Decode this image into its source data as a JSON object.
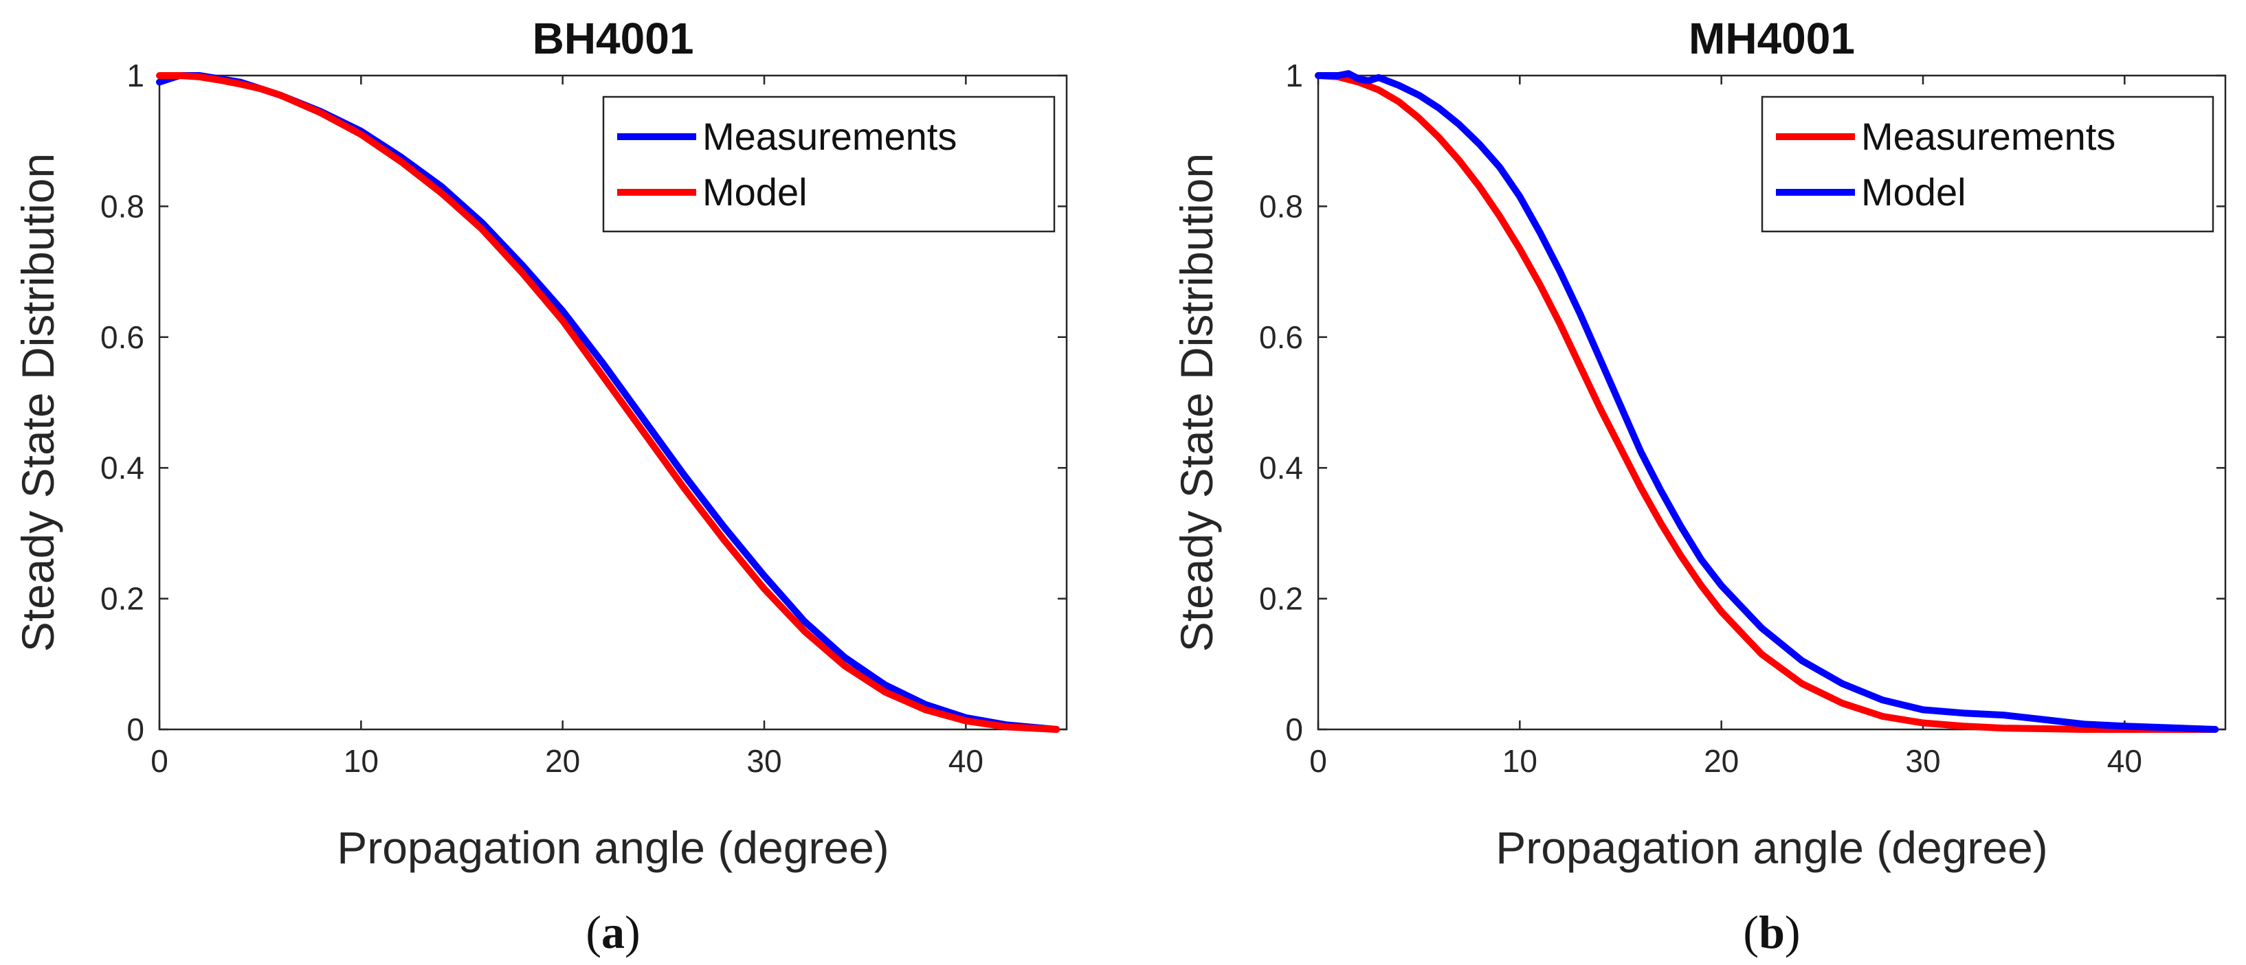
{
  "colors": {
    "blue": "#0000ff",
    "red": "#ff0000"
  },
  "chart_data": [
    {
      "type": "line",
      "title": "BH4001",
      "xlabel": "Propagation angle (degree)",
      "ylabel": "Steady State Distribution",
      "xlim": [
        0,
        45
      ],
      "ylim": [
        0,
        1
      ],
      "xticks": [
        "0",
        "10",
        "20",
        "30",
        "40"
      ],
      "yticks": [
        "0",
        "0.2",
        "0.4",
        "0.6",
        "0.8",
        "1"
      ],
      "legend_position": "top-right",
      "caption_letter": "a",
      "series": [
        {
          "name": "Measurements",
          "color": "#0000ff",
          "x": [
            0,
            1,
            2,
            3,
            4,
            5,
            6,
            8,
            10,
            12,
            14,
            16,
            18,
            20,
            22,
            24,
            26,
            28,
            30,
            32,
            34,
            36,
            38,
            40,
            42,
            44.5
          ],
          "y": [
            0.99,
            1.0,
            1.0,
            0.995,
            0.99,
            0.98,
            0.97,
            0.945,
            0.915,
            0.875,
            0.83,
            0.775,
            0.71,
            0.64,
            0.56,
            0.475,
            0.39,
            0.31,
            0.235,
            0.165,
            0.11,
            0.068,
            0.038,
            0.018,
            0.007,
            0.0
          ]
        },
        {
          "name": "Model",
          "color": "#ff0000",
          "x": [
            0,
            1,
            2,
            3,
            4,
            5,
            6,
            8,
            10,
            12,
            14,
            16,
            18,
            20,
            22,
            24,
            26,
            28,
            30,
            32,
            34,
            36,
            38,
            40,
            42,
            44.5
          ],
          "y": [
            1.0,
            1.0,
            0.998,
            0.993,
            0.987,
            0.98,
            0.97,
            0.943,
            0.91,
            0.868,
            0.82,
            0.765,
            0.698,
            0.625,
            0.54,
            0.455,
            0.37,
            0.29,
            0.215,
            0.15,
            0.097,
            0.057,
            0.03,
            0.013,
            0.004,
            0.0
          ]
        }
      ]
    },
    {
      "type": "line",
      "title": "MH4001",
      "xlabel": "Propagation angle (degree)",
      "ylabel": "Steady State Distribution",
      "xlim": [
        0,
        45
      ],
      "ylim": [
        0,
        1
      ],
      "xticks": [
        "0",
        "10",
        "20",
        "30",
        "40"
      ],
      "yticks": [
        "0",
        "0.2",
        "0.4",
        "0.6",
        "0.8",
        "1"
      ],
      "legend_position": "top-right",
      "caption_letter": "b",
      "series": [
        {
          "name": "Measurements",
          "color": "#ff0000",
          "x": [
            0,
            1,
            2,
            3,
            4,
            5,
            6,
            7,
            8,
            9,
            10,
            11,
            12,
            13,
            14,
            15,
            16,
            17,
            18,
            19,
            20,
            22,
            24,
            26,
            28,
            30,
            32,
            34,
            36,
            38,
            40,
            44.5
          ],
          "y": [
            1.0,
            0.998,
            0.99,
            0.978,
            0.96,
            0.935,
            0.905,
            0.87,
            0.83,
            0.785,
            0.735,
            0.68,
            0.62,
            0.555,
            0.49,
            0.43,
            0.37,
            0.315,
            0.265,
            0.22,
            0.18,
            0.115,
            0.07,
            0.04,
            0.02,
            0.01,
            0.005,
            0.002,
            0.001,
            0.0,
            0.0,
            0.0
          ]
        },
        {
          "name": "Model",
          "color": "#0000ff",
          "x": [
            0,
            1,
            1.5,
            2,
            2.5,
            3,
            4,
            5,
            6,
            7,
            8,
            9,
            10,
            11,
            12,
            13,
            14,
            15,
            16,
            17,
            18,
            19,
            20,
            22,
            24,
            26,
            28,
            30,
            32,
            34,
            36,
            38,
            40,
            44.5
          ],
          "y": [
            1.0,
            1.0,
            1.003,
            0.995,
            0.992,
            0.997,
            0.985,
            0.97,
            0.95,
            0.925,
            0.895,
            0.86,
            0.815,
            0.76,
            0.7,
            0.635,
            0.565,
            0.495,
            0.425,
            0.365,
            0.31,
            0.26,
            0.22,
            0.155,
            0.105,
            0.07,
            0.045,
            0.03,
            0.025,
            0.022,
            0.015,
            0.008,
            0.005,
            0.0
          ]
        }
      ]
    }
  ]
}
